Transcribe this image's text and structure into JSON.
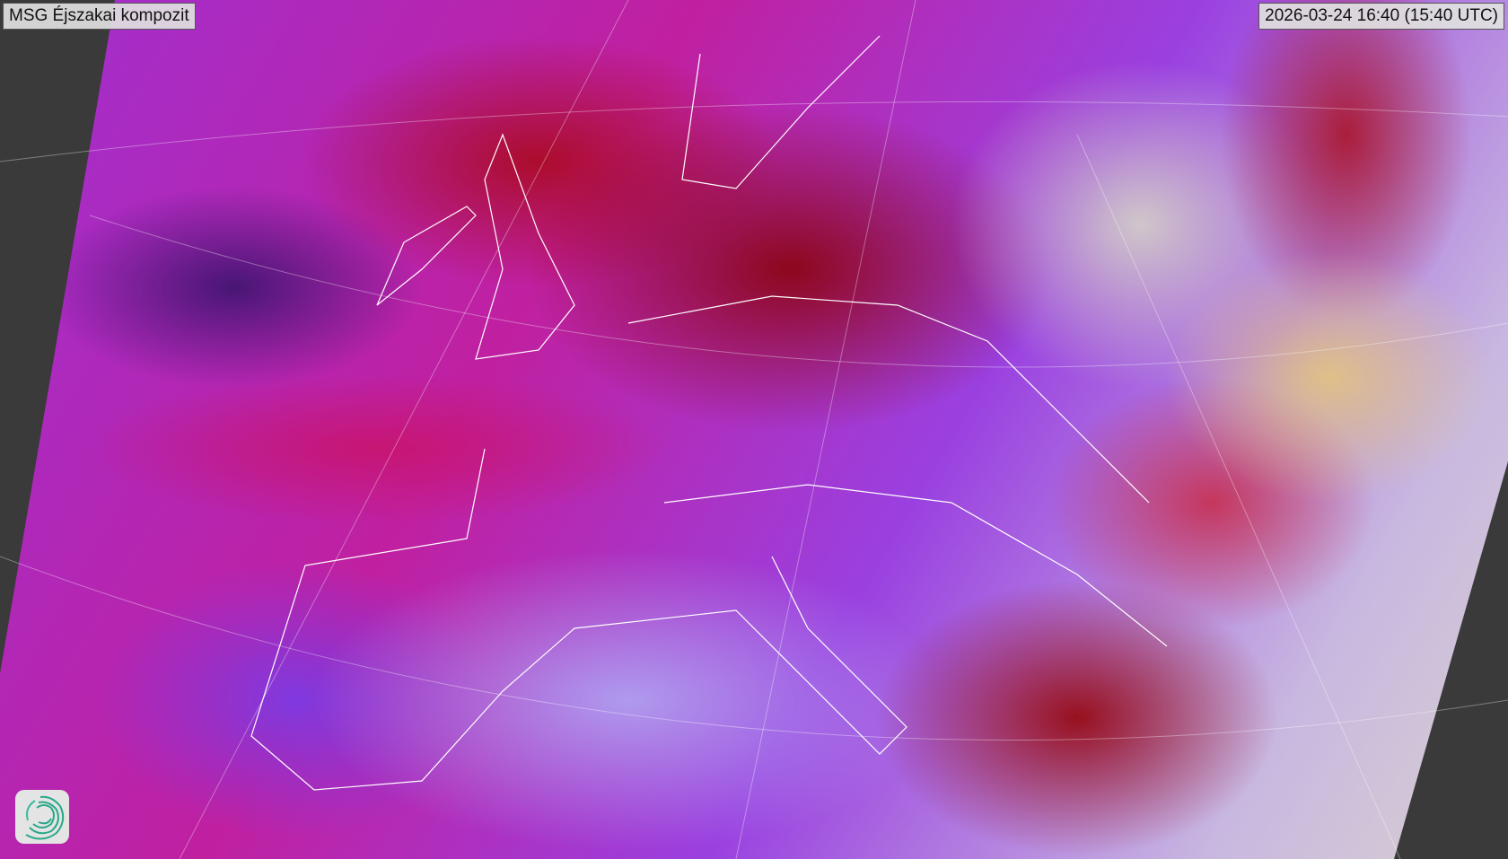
{
  "map": {
    "title": "MSG Éjszakai kompozit",
    "timestamp": "2026-03-24 16:40 (15:40 UTC)",
    "logo_icon": "swirl-logo-icon",
    "colors": {
      "background": "#3a3a3a",
      "coastline": "#ffffff",
      "logo": "#2aa88a"
    }
  }
}
